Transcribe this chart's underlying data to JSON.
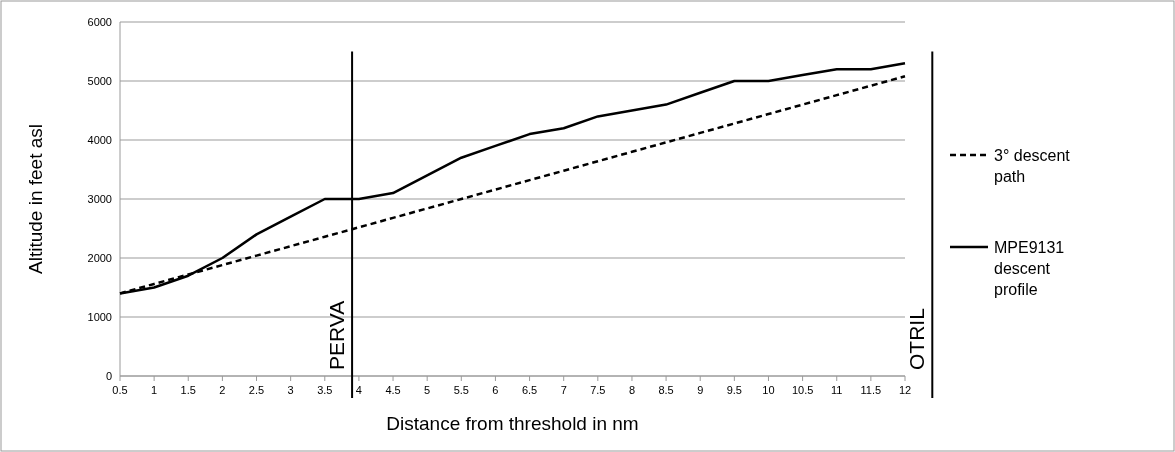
{
  "chart_data": {
    "type": "line",
    "xlabel": "Distance from threshold in nm",
    "ylabel": "Altitude in feet asl",
    "x": [
      0.5,
      1,
      1.5,
      2,
      2.5,
      3,
      3.5,
      4,
      4.5,
      5,
      5.5,
      6,
      6.5,
      7,
      7.5,
      8,
      8.5,
      9,
      9.5,
      10,
      10.5,
      11,
      11.5,
      12
    ],
    "xlim": [
      0.5,
      12
    ],
    "xticks": [
      0.5,
      1,
      1.5,
      2,
      2.5,
      3,
      3.5,
      4,
      4.5,
      5,
      5.5,
      6,
      6.5,
      7,
      7.5,
      8,
      8.5,
      9,
      9.5,
      10,
      10.5,
      11,
      11.5,
      12
    ],
    "ylim": [
      0,
      6000
    ],
    "yticks": [
      0,
      1000,
      2000,
      3000,
      4000,
      5000,
      6000
    ],
    "grid": "y",
    "legend": "right",
    "marker": "none",
    "series": [
      {
        "name": "3° descent path",
        "color": "#000000",
        "line_style": "dashed",
        "values": [
          1400,
          1560,
          1720,
          1880,
          2040,
          2200,
          2360,
          2520,
          2680,
          2840,
          3000,
          3160,
          3320,
          3480,
          3640,
          3800,
          3960,
          4120,
          4280,
          4440,
          4600,
          4760,
          4920,
          5080
        ]
      },
      {
        "name": "MPE9131 descent profile",
        "color": "#000000",
        "line_style": "solid",
        "values": [
          1400,
          1500,
          1700,
          2000,
          2400,
          2700,
          3000,
          3000,
          3100,
          3400,
          3700,
          3900,
          4100,
          4200,
          4400,
          4500,
          4600,
          4800,
          5000,
          5000,
          5100,
          5200,
          5200,
          5300
        ]
      }
    ],
    "ref_lines": [
      {
        "axis": "x",
        "value": 3.9,
        "label": "PERVA",
        "color": "#000000"
      },
      {
        "axis": "x",
        "value": 12.4,
        "label": "OTRIL",
        "color": "#000000"
      }
    ]
  }
}
